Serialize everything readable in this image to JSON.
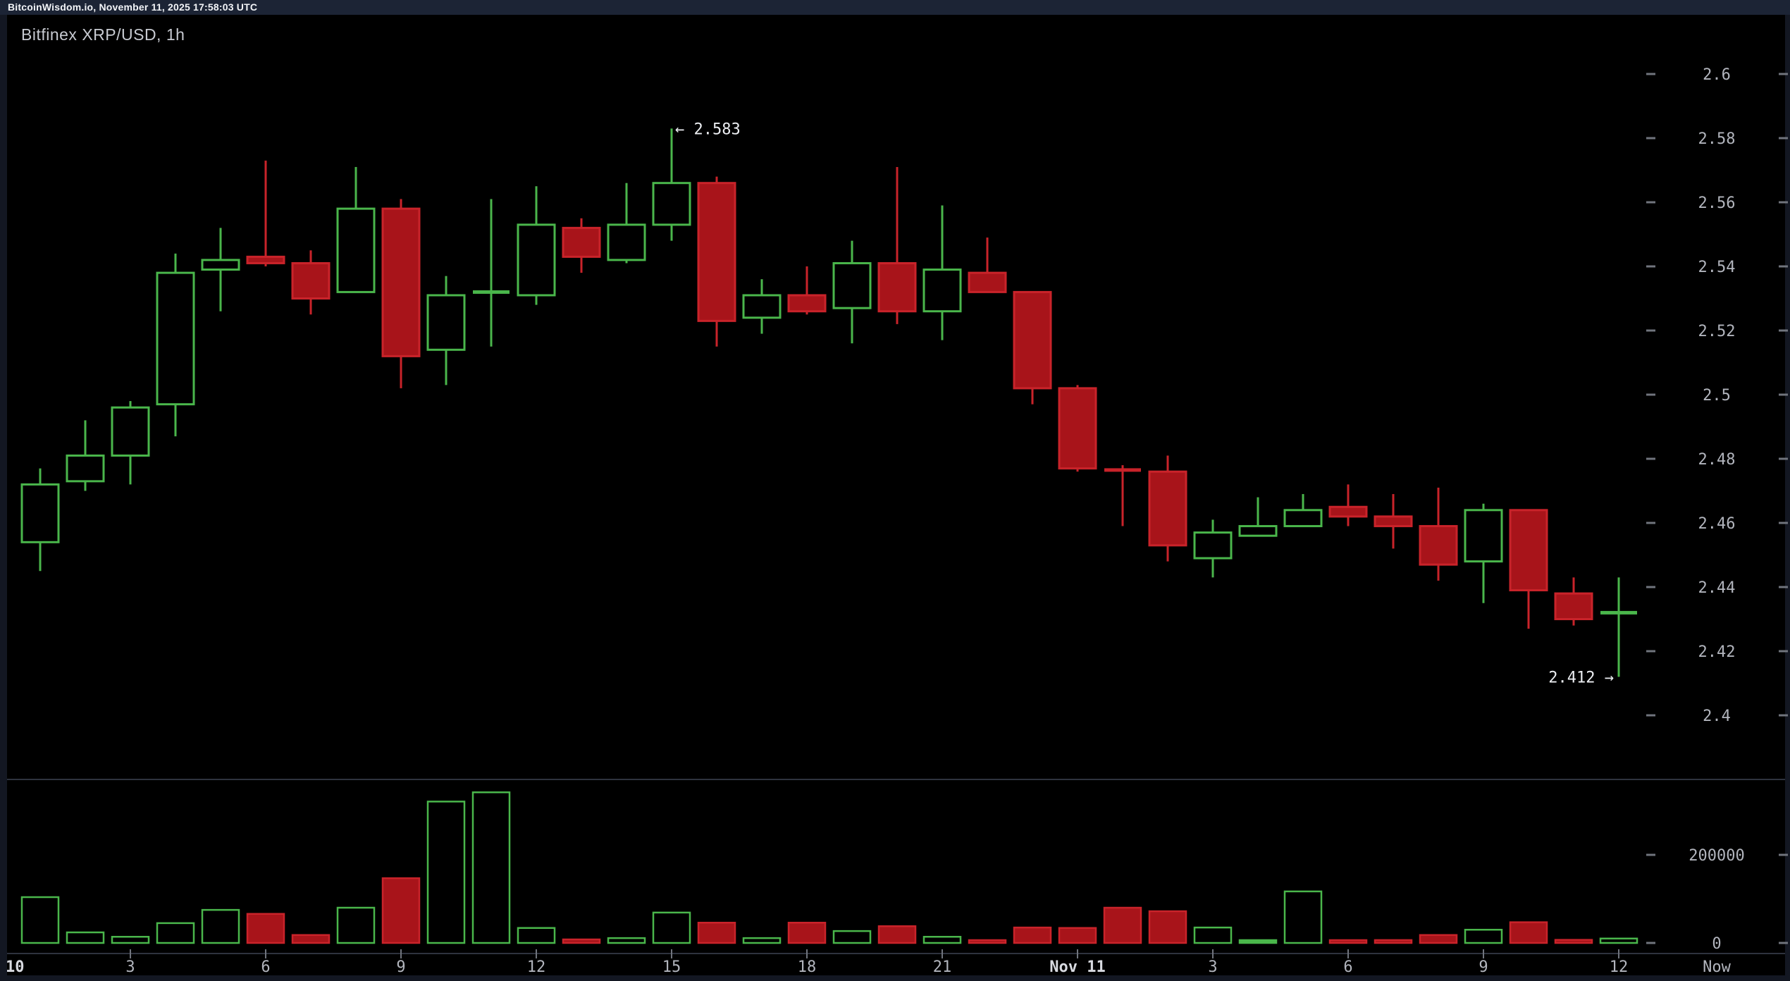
{
  "window": {
    "topbar_text": "BitcoinWisdom.io, November 11, 2025 17:58:03 UTC"
  },
  "chart": {
    "title": "Bitfinex XRP/USD, 1h"
  },
  "colors": {
    "page_bg": "#131722",
    "topbar_bg": "#1c2435",
    "chart_bg": "#000000",
    "up": "#4ab64b",
    "down_fill": "#a8141a",
    "down_stroke": "#c9232a",
    "axis_text": "#b2b5bd",
    "axis_text_bright": "#d8dae0",
    "annotation_text": "#eceef2",
    "pane_line": "#2e333e",
    "tick": "#70747d"
  },
  "chart_data": {
    "type": "candlestick_with_volume",
    "title": "Bitfinex XRP/USD, 1h",
    "symbol": "Bitfinex XRP/USD",
    "interval": "1h",
    "ylim": [
      2.4,
      2.6
    ],
    "price_ticks": [
      "2.6",
      "2.58",
      "2.56",
      "2.54",
      "2.52",
      "2.5",
      "2.48",
      "2.46",
      "2.44",
      "2.42",
      "2.4"
    ],
    "volume_ticks": [
      "200000",
      "0"
    ],
    "legend_position": "none",
    "grid": false,
    "x_ticks": [
      {
        "label": "10",
        "hour": 0,
        "bold": true,
        "clamp": true
      },
      {
        "label": "3",
        "hour": 3
      },
      {
        "label": "6",
        "hour": 6
      },
      {
        "label": "9",
        "hour": 9
      },
      {
        "label": "12",
        "hour": 12
      },
      {
        "label": "15",
        "hour": 15
      },
      {
        "label": "18",
        "hour": 18
      },
      {
        "label": "21",
        "hour": 21
      },
      {
        "label": "Nov 11",
        "hour": 24,
        "bold": true
      },
      {
        "label": "3",
        "hour": 27
      },
      {
        "label": "6",
        "hour": 30
      },
      {
        "label": "9",
        "hour": 33
      },
      {
        "label": "12",
        "hour": 36
      },
      {
        "label": "Now",
        "gutter": true
      }
    ],
    "annotations": [
      {
        "text": "← 2.583",
        "candle": 14,
        "attach": "high",
        "side": "right"
      },
      {
        "text": "2.412 →",
        "candle": 35,
        "attach": "low",
        "side": "left"
      }
    ],
    "candles": [
      {
        "t": "Nov 10 01:00",
        "o": 2.454,
        "h": 2.477,
        "l": 2.445,
        "c": 2.472,
        "v": 104000
      },
      {
        "t": "Nov 10 02:00",
        "o": 2.473,
        "h": 2.492,
        "l": 2.47,
        "c": 2.481,
        "v": 24000
      },
      {
        "t": "Nov 10 03:00",
        "o": 2.481,
        "h": 2.498,
        "l": 2.472,
        "c": 2.496,
        "v": 14000
      },
      {
        "t": "Nov 10 04:00",
        "o": 2.497,
        "h": 2.544,
        "l": 2.487,
        "c": 2.538,
        "v": 45000
      },
      {
        "t": "Nov 10 05:00",
        "o": 2.539,
        "h": 2.552,
        "l": 2.526,
        "c": 2.542,
        "v": 75000
      },
      {
        "t": "Nov 10 06:00",
        "o": 2.543,
        "h": 2.573,
        "l": 2.54,
        "c": 2.541,
        "v": 66000
      },
      {
        "t": "Nov 10 07:00",
        "o": 2.541,
        "h": 2.545,
        "l": 2.525,
        "c": 2.53,
        "v": 18000
      },
      {
        "t": "Nov 10 08:00",
        "o": 2.532,
        "h": 2.571,
        "l": 2.532,
        "c": 2.558,
        "v": 80000
      },
      {
        "t": "Nov 10 09:00",
        "o": 2.558,
        "h": 2.561,
        "l": 2.502,
        "c": 2.512,
        "v": 147000
      },
      {
        "t": "Nov 10 10:00",
        "o": 2.514,
        "h": 2.537,
        "l": 2.503,
        "c": 2.531,
        "v": 321000
      },
      {
        "t": "Nov 10 11:00",
        "o": 2.532,
        "h": 2.561,
        "l": 2.515,
        "c": 2.532,
        "v": 342000
      },
      {
        "t": "Nov 10 12:00",
        "o": 2.531,
        "h": 2.565,
        "l": 2.528,
        "c": 2.553,
        "v": 34000
      },
      {
        "t": "Nov 10 13:00",
        "o": 2.552,
        "h": 2.555,
        "l": 2.538,
        "c": 2.543,
        "v": 8000
      },
      {
        "t": "Nov 10 14:00",
        "o": 2.542,
        "h": 2.566,
        "l": 2.541,
        "c": 2.553,
        "v": 11000
      },
      {
        "t": "Nov 10 15:00",
        "o": 2.553,
        "h": 2.583,
        "l": 2.548,
        "c": 2.566,
        "v": 69000
      },
      {
        "t": "Nov 10 16:00",
        "o": 2.566,
        "h": 2.568,
        "l": 2.515,
        "c": 2.523,
        "v": 46000
      },
      {
        "t": "Nov 10 17:00",
        "o": 2.524,
        "h": 2.536,
        "l": 2.519,
        "c": 2.531,
        "v": 11000
      },
      {
        "t": "Nov 10 18:00",
        "o": 2.531,
        "h": 2.54,
        "l": 2.525,
        "c": 2.526,
        "v": 46000
      },
      {
        "t": "Nov 10 19:00",
        "o": 2.527,
        "h": 2.548,
        "l": 2.516,
        "c": 2.541,
        "v": 27000
      },
      {
        "t": "Nov 10 20:00",
        "o": 2.541,
        "h": 2.571,
        "l": 2.522,
        "c": 2.526,
        "v": 38000
      },
      {
        "t": "Nov 10 21:00",
        "o": 2.526,
        "h": 2.559,
        "l": 2.517,
        "c": 2.539,
        "v": 14000
      },
      {
        "t": "Nov 10 22:00",
        "o": 2.538,
        "h": 2.549,
        "l": 2.532,
        "c": 2.532,
        "v": 6000
      },
      {
        "t": "Nov 10 23:00",
        "o": 2.532,
        "h": 2.532,
        "l": 2.497,
        "c": 2.502,
        "v": 35000
      },
      {
        "t": "Nov 11 00:00",
        "o": 2.502,
        "h": 2.503,
        "l": 2.476,
        "c": 2.477,
        "v": 34000
      },
      {
        "t": "Nov 11 01:00",
        "o": 2.477,
        "h": 2.478,
        "l": 2.459,
        "c": 2.476,
        "v": 80000
      },
      {
        "t": "Nov 11 02:00",
        "o": 2.476,
        "h": 2.481,
        "l": 2.448,
        "c": 2.453,
        "v": 72000
      },
      {
        "t": "Nov 11 03:00",
        "o": 2.449,
        "h": 2.461,
        "l": 2.443,
        "c": 2.457,
        "v": 35000
      },
      {
        "t": "Nov 11 04:00",
        "o": 2.456,
        "h": 2.468,
        "l": 2.456,
        "c": 2.459,
        "v": 5000,
        "vsolid": true
      },
      {
        "t": "Nov 11 05:00",
        "o": 2.459,
        "h": 2.469,
        "l": 2.459,
        "c": 2.464,
        "v": 117000
      },
      {
        "t": "Nov 11 06:00",
        "o": 2.465,
        "h": 2.472,
        "l": 2.459,
        "c": 2.462,
        "v": 2500
      },
      {
        "t": "Nov 11 07:00",
        "o": 2.462,
        "h": 2.469,
        "l": 2.452,
        "c": 2.459,
        "v": 6500
      },
      {
        "t": "Nov 11 08:00",
        "o": 2.459,
        "h": 2.471,
        "l": 2.442,
        "c": 2.447,
        "v": 18000
      },
      {
        "t": "Nov 11 09:00",
        "o": 2.448,
        "h": 2.466,
        "l": 2.435,
        "c": 2.464,
        "v": 30000
      },
      {
        "t": "Nov 11 10:00",
        "o": 2.464,
        "h": 2.464,
        "l": 2.427,
        "c": 2.439,
        "v": 47000
      },
      {
        "t": "Nov 11 11:00",
        "o": 2.438,
        "h": 2.443,
        "l": 2.428,
        "c": 2.43,
        "v": 7000
      },
      {
        "t": "Nov 11 12:00",
        "o": 2.432,
        "h": 2.443,
        "l": 2.412,
        "c": 2.432,
        "v": 10000
      }
    ]
  }
}
